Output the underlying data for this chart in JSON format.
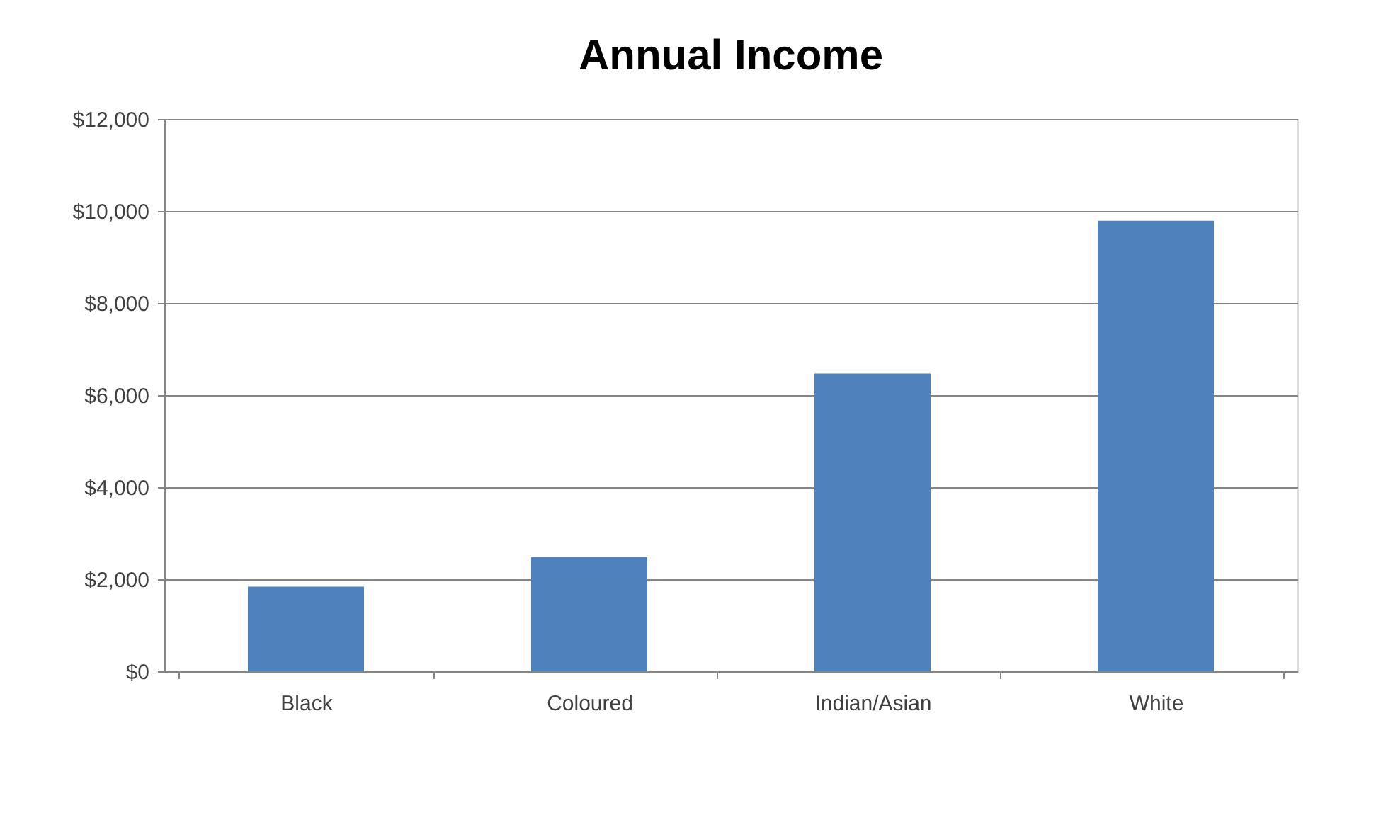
{
  "chart_data": {
    "type": "bar",
    "title": "Annual Income",
    "categories": [
      "Black",
      "Coloured",
      "Indian/Asian",
      "White"
    ],
    "values": [
      1840,
      2480,
      6470,
      9790
    ],
    "color": "#4f81bd",
    "ylim": [
      0,
      12000
    ],
    "yticks": [
      {
        "value": 0,
        "label": "$0"
      },
      {
        "value": 2000,
        "label": "$2,000"
      },
      {
        "value": 4000,
        "label": "$4,000"
      },
      {
        "value": 6000,
        "label": "$6,000"
      },
      {
        "value": 8000,
        "label": "$8,000"
      },
      {
        "value": 10000,
        "label": "$10,000"
      },
      {
        "value": 12000,
        "label": "$12,000"
      }
    ],
    "grid": "y"
  }
}
